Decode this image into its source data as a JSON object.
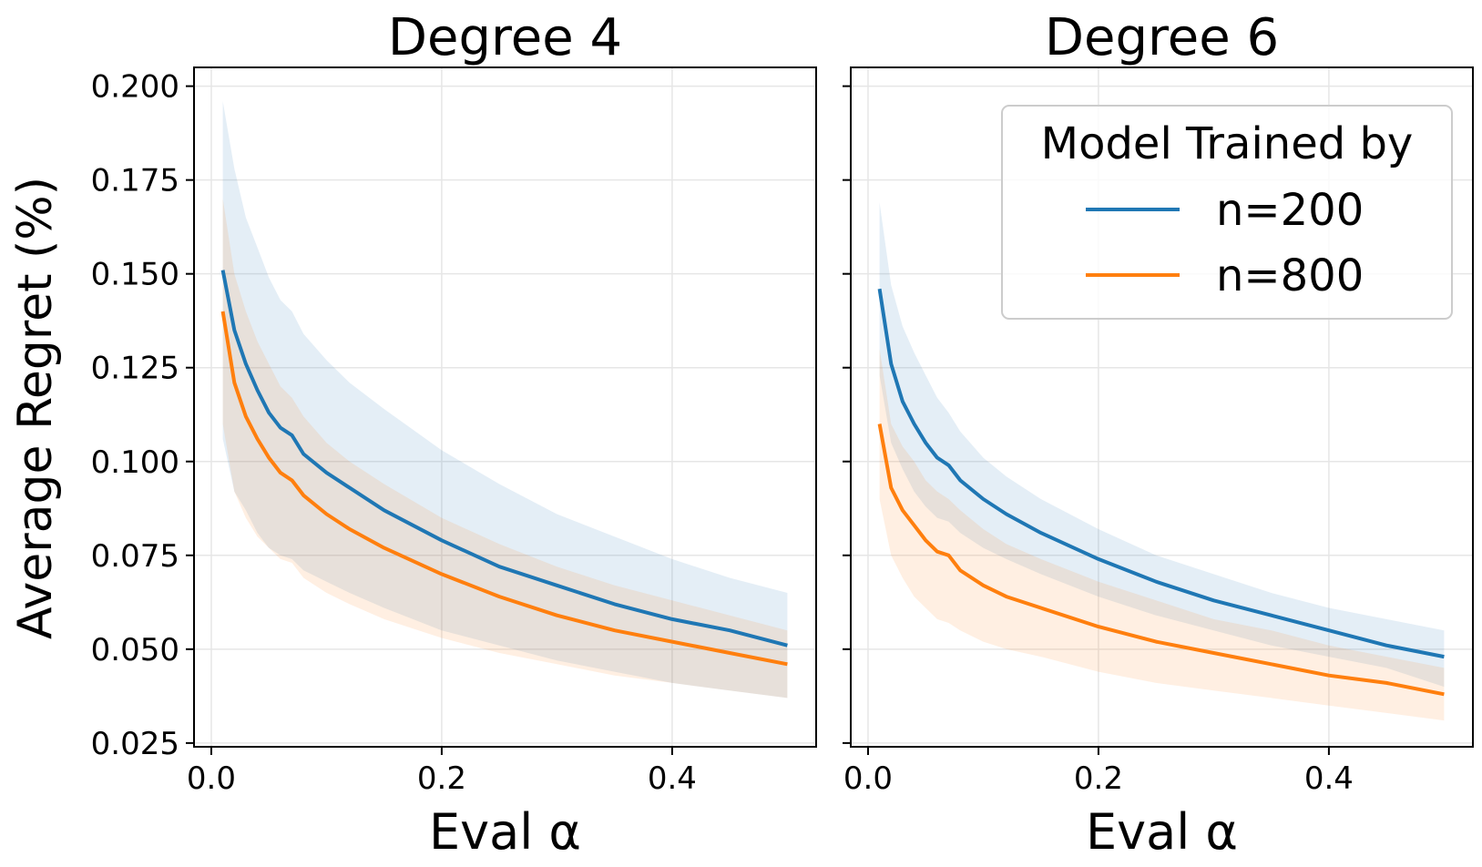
{
  "figure": {
    "ylabel": "Average Regret (%)"
  },
  "legend": {
    "title": "Model Trained by",
    "entries": [
      {
        "label": "n=200",
        "color": "#1f77b4"
      },
      {
        "label": "n=800",
        "color": "#ff7f0e"
      }
    ]
  },
  "colors": {
    "n200": "#1f77b4",
    "n800": "#ff7f0e",
    "grid": "#e6e6e6",
    "axis": "#000000"
  },
  "chart_data": [
    {
      "type": "line",
      "title": "Degree 4",
      "xlabel": "Eval α",
      "ylabel": "Average Regret (%)",
      "xlim": [
        -0.015,
        0.525
      ],
      "ylim": [
        0.024,
        0.205
      ],
      "xticks": [
        0.0,
        0.2,
        0.4
      ],
      "xtick_labels": [
        "0.0",
        "0.2",
        "0.4"
      ],
      "yticks": [
        0.025,
        0.05,
        0.075,
        0.1,
        0.125,
        0.15,
        0.175,
        0.2
      ],
      "ytick_labels": [
        "0.025",
        "0.050",
        "0.075",
        "0.100",
        "0.125",
        "0.150",
        "0.175",
        "0.200"
      ],
      "grid": true,
      "x": [
        0.01,
        0.02,
        0.03,
        0.04,
        0.05,
        0.06,
        0.07,
        0.08,
        0.1,
        0.12,
        0.15,
        0.2,
        0.25,
        0.3,
        0.35,
        0.4,
        0.45,
        0.5
      ],
      "series": [
        {
          "name": "n=200",
          "values": [
            0.151,
            0.135,
            0.126,
            0.119,
            0.113,
            0.109,
            0.107,
            0.102,
            0.097,
            0.093,
            0.087,
            0.079,
            0.072,
            0.067,
            0.062,
            0.058,
            0.055,
            0.051
          ],
          "upper": [
            0.196,
            0.178,
            0.165,
            0.157,
            0.149,
            0.143,
            0.14,
            0.134,
            0.127,
            0.121,
            0.114,
            0.103,
            0.094,
            0.086,
            0.08,
            0.074,
            0.069,
            0.065
          ],
          "lower": [
            0.106,
            0.092,
            0.087,
            0.081,
            0.077,
            0.075,
            0.074,
            0.071,
            0.068,
            0.065,
            0.061,
            0.055,
            0.051,
            0.047,
            0.044,
            0.041,
            0.039,
            0.037
          ]
        },
        {
          "name": "n=800",
          "values": [
            0.14,
            0.121,
            0.112,
            0.106,
            0.101,
            0.097,
            0.095,
            0.091,
            0.086,
            0.082,
            0.077,
            0.07,
            0.064,
            0.059,
            0.055,
            0.052,
            0.049,
            0.046
          ],
          "upper": [
            0.17,
            0.15,
            0.14,
            0.132,
            0.126,
            0.12,
            0.117,
            0.112,
            0.105,
            0.1,
            0.094,
            0.085,
            0.078,
            0.072,
            0.067,
            0.063,
            0.059,
            0.055
          ],
          "lower": [
            0.11,
            0.092,
            0.085,
            0.08,
            0.077,
            0.074,
            0.073,
            0.069,
            0.065,
            0.062,
            0.058,
            0.053,
            0.049,
            0.046,
            0.043,
            0.041,
            0.039,
            0.037
          ]
        }
      ]
    },
    {
      "type": "line",
      "title": "Degree 6",
      "xlabel": "Eval α",
      "ylabel": "",
      "xlim": [
        -0.015,
        0.525
      ],
      "ylim": [
        0.024,
        0.205
      ],
      "xticks": [
        0.0,
        0.2,
        0.4
      ],
      "xtick_labels": [
        "0.0",
        "0.2",
        "0.4"
      ],
      "yticks": [
        0.025,
        0.05,
        0.075,
        0.1,
        0.125,
        0.15,
        0.175,
        0.2
      ],
      "ytick_labels": [],
      "grid": true,
      "legend_position": "top-right",
      "x": [
        0.01,
        0.02,
        0.03,
        0.04,
        0.05,
        0.06,
        0.07,
        0.08,
        0.1,
        0.12,
        0.15,
        0.2,
        0.25,
        0.3,
        0.35,
        0.4,
        0.45,
        0.5
      ],
      "series": [
        {
          "name": "n=200",
          "values": [
            0.146,
            0.126,
            0.116,
            0.11,
            0.105,
            0.101,
            0.099,
            0.095,
            0.09,
            0.086,
            0.081,
            0.074,
            0.068,
            0.063,
            0.059,
            0.055,
            0.051,
            0.048
          ],
          "upper": [
            0.169,
            0.147,
            0.136,
            0.129,
            0.123,
            0.117,
            0.113,
            0.108,
            0.101,
            0.096,
            0.09,
            0.082,
            0.075,
            0.07,
            0.065,
            0.061,
            0.058,
            0.055
          ],
          "lower": [
            0.123,
            0.105,
            0.098,
            0.092,
            0.088,
            0.085,
            0.084,
            0.081,
            0.077,
            0.074,
            0.07,
            0.064,
            0.059,
            0.055,
            0.051,
            0.048,
            0.045,
            0.04
          ]
        },
        {
          "name": "n=800",
          "values": [
            0.11,
            0.093,
            0.087,
            0.083,
            0.079,
            0.076,
            0.075,
            0.071,
            0.067,
            0.064,
            0.061,
            0.056,
            0.052,
            0.049,
            0.046,
            0.043,
            0.041,
            0.038
          ],
          "upper": [
            0.13,
            0.11,
            0.104,
            0.1,
            0.095,
            0.092,
            0.09,
            0.087,
            0.082,
            0.078,
            0.074,
            0.068,
            0.063,
            0.058,
            0.055,
            0.051,
            0.048,
            0.045
          ],
          "lower": [
            0.09,
            0.075,
            0.069,
            0.064,
            0.061,
            0.058,
            0.057,
            0.055,
            0.052,
            0.05,
            0.048,
            0.044,
            0.041,
            0.039,
            0.037,
            0.035,
            0.033,
            0.031
          ]
        }
      ]
    }
  ]
}
